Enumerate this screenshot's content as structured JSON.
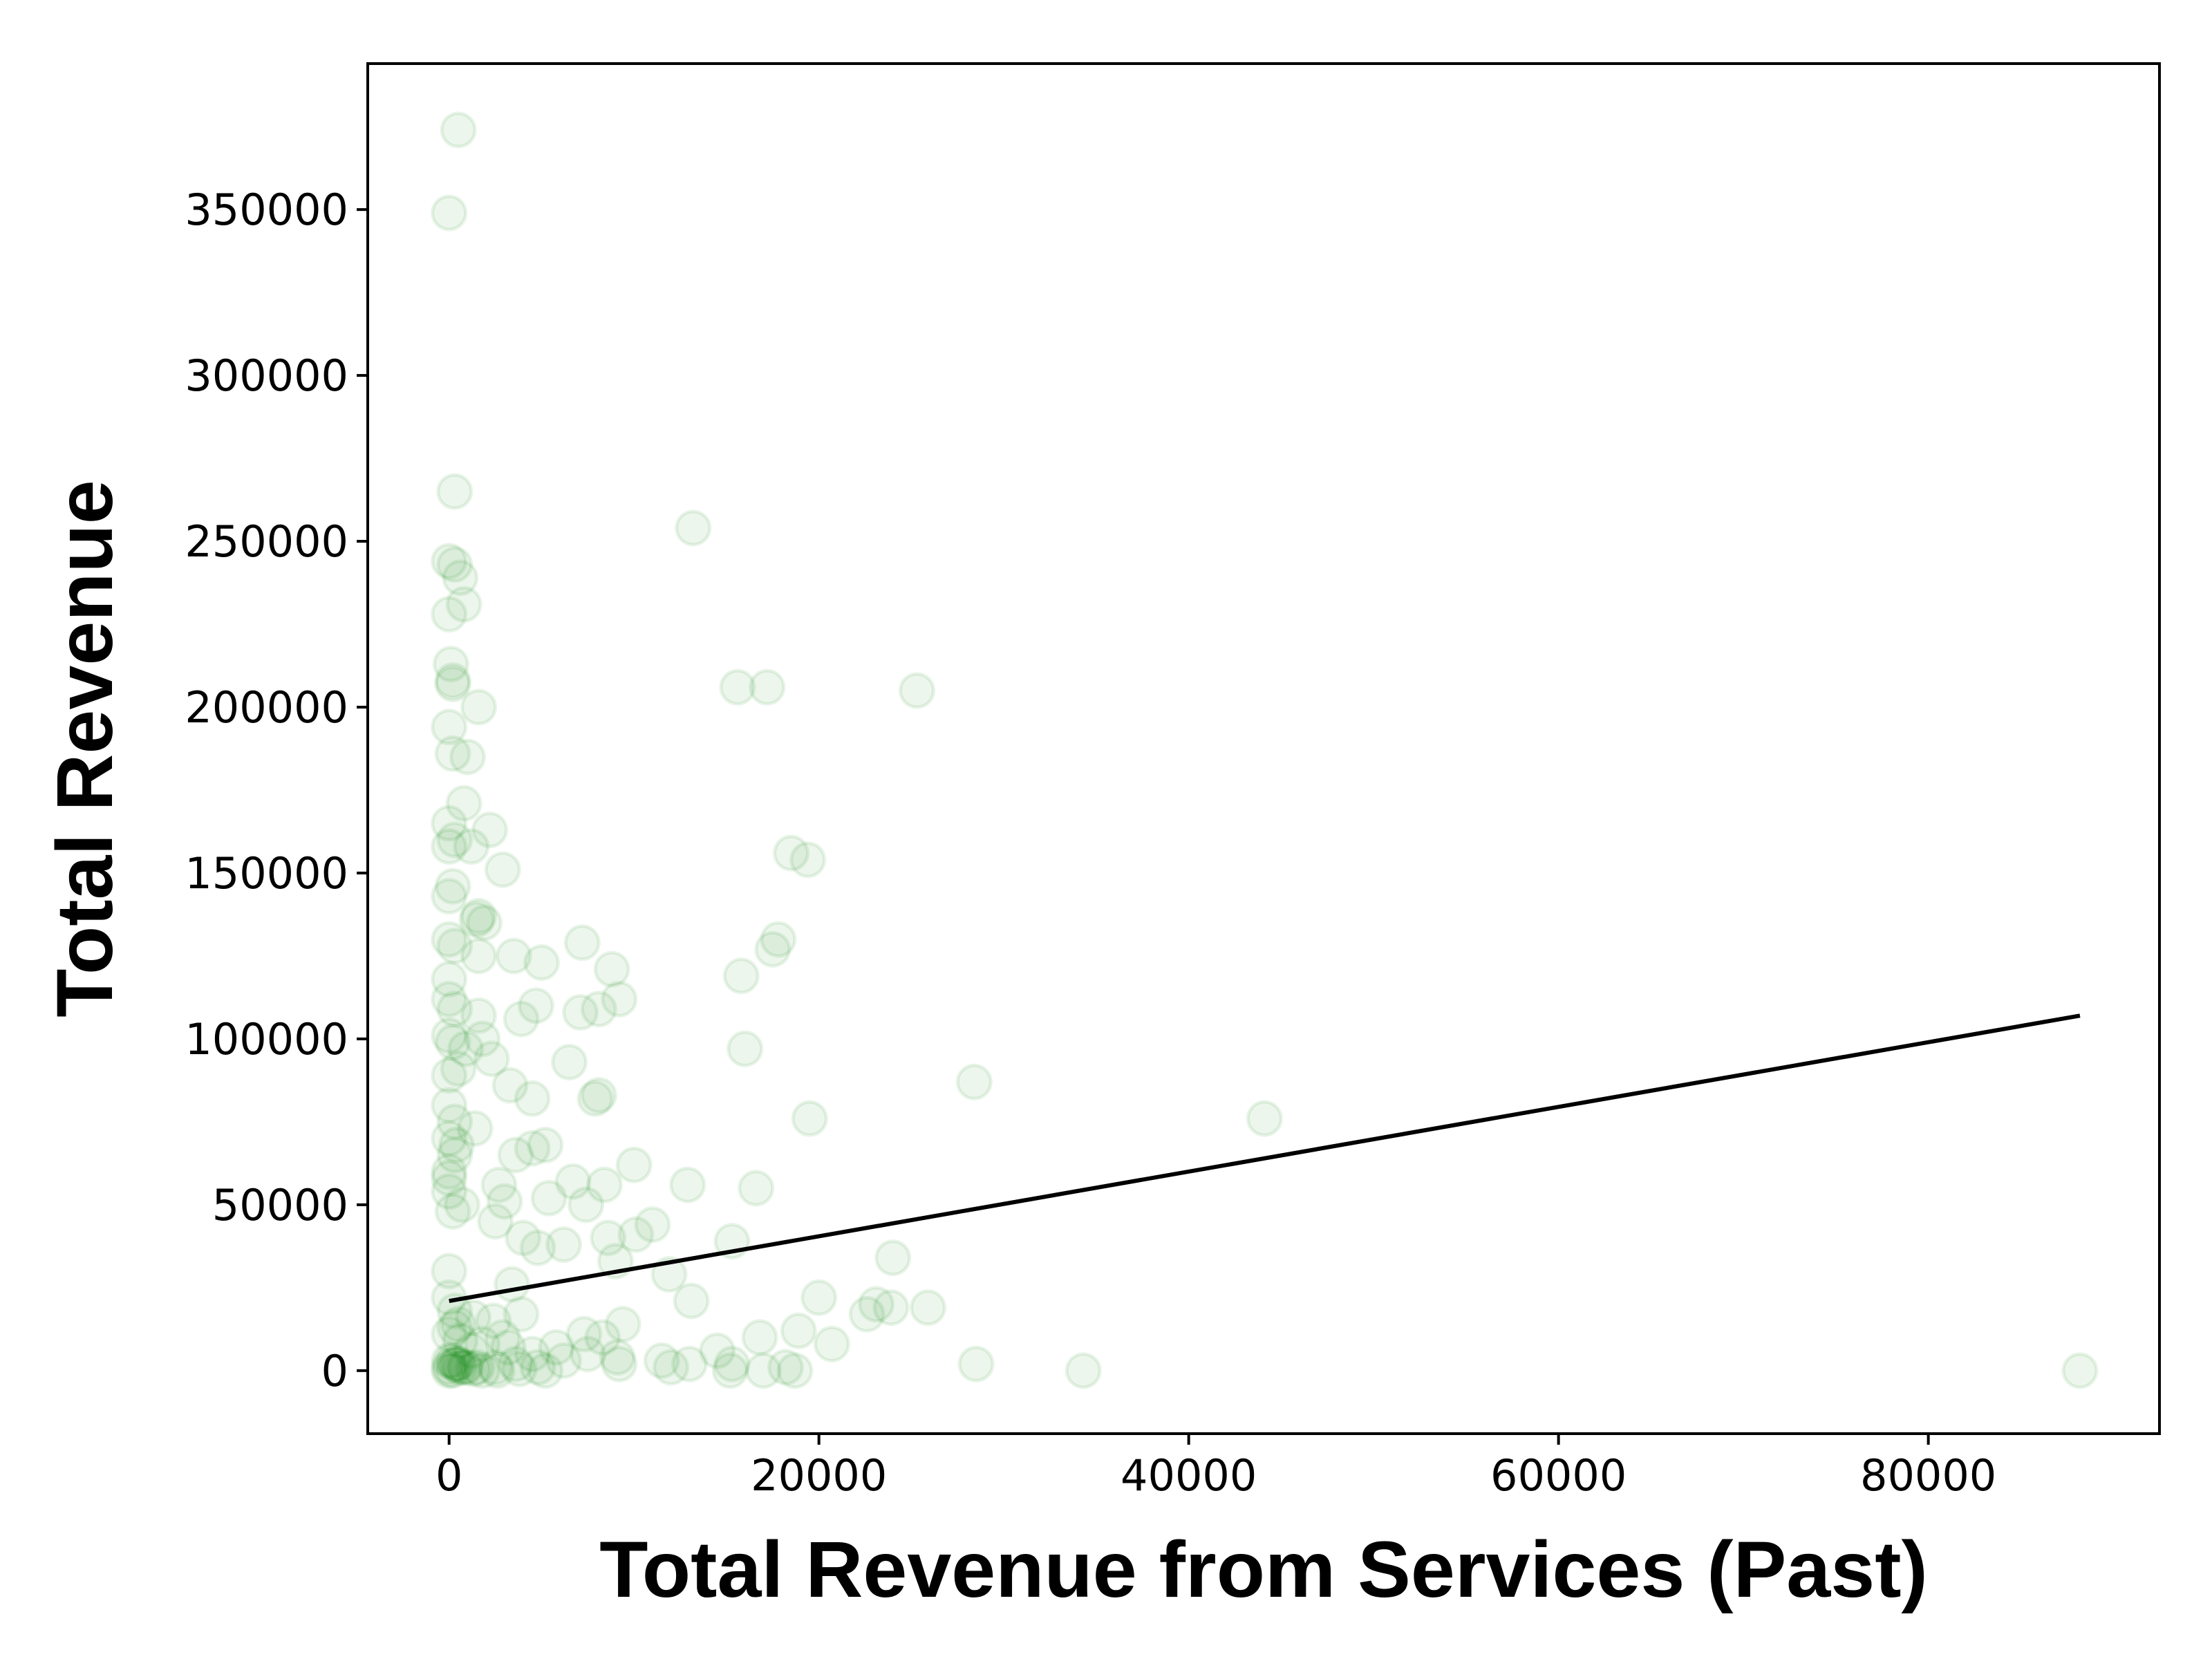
{
  "chart_data": {
    "type": "scatter",
    "title": "",
    "xlabel": "Total Revenue from Services (Past)",
    "ylabel": "Total Revenue",
    "xlim": [
      -4400,
      92500
    ],
    "ylim": [
      -19000,
      394000
    ],
    "xticks": [
      0,
      20000,
      40000,
      60000,
      80000
    ],
    "yticks": [
      0,
      50000,
      100000,
      150000,
      200000,
      250000,
      300000,
      350000
    ],
    "grid": false,
    "legend": "none",
    "colors": {
      "points": "#008000",
      "fit_line": "#000000",
      "axes": "#000000"
    },
    "series": [
      {
        "type": "scatter",
        "x": [
          500,
          0,
          300,
          13200,
          0,
          300,
          600,
          800,
          0,
          100,
          1600,
          200,
          200,
          15600,
          17200,
          25300,
          0,
          200,
          1000,
          800,
          0,
          0,
          300,
          1200,
          1500,
          2200,
          2900,
          0,
          200,
          1600,
          1900,
          18500,
          19400,
          0,
          300,
          1600,
          17800,
          3500,
          5000,
          7200,
          7100,
          8800,
          0,
          15800,
          17500,
          0,
          300,
          1600,
          4700,
          9200,
          0,
          8100,
          3900,
          200,
          900,
          1800,
          16000,
          28400,
          0,
          500,
          2300,
          6500,
          3300,
          4500,
          7900,
          8100,
          19500,
          44100,
          0,
          300,
          1400,
          5200,
          400,
          0,
          300,
          4500,
          0,
          10000,
          0,
          3600,
          6700,
          8400,
          2700,
          12900,
          16600,
          5400,
          3000,
          7400,
          0,
          200,
          700,
          11000,
          2500,
          8600,
          10100,
          4800,
          15300,
          6200,
          24000,
          4000,
          9000,
          0,
          3400,
          11900,
          20000,
          13100,
          23900,
          25900,
          23100,
          22600,
          0,
          300,
          1300,
          2400,
          500,
          3900,
          7300,
          8300,
          9400,
          18900,
          20700,
          16800,
          14500,
          0,
          300,
          600,
          1800,
          3200,
          4500,
          1200,
          2900,
          5800,
          7500,
          9100,
          11500,
          13000,
          15300,
          18200,
          500,
          0,
          300,
          800,
          1500,
          2500,
          3600,
          4800,
          6200,
          9200,
          12000,
          15200,
          17000,
          18700,
          28500,
          34300,
          88200,
          0,
          200,
          400,
          600,
          900,
          1300,
          1800,
          2600,
          3800,
          5200,
          0,
          200
        ],
        "y": [
          374000,
          349000,
          265000,
          254000,
          244000,
          243000,
          239000,
          231000,
          228000,
          213000,
          200000,
          207000,
          208000,
          206000,
          206000,
          205000,
          194000,
          186000,
          185000,
          171000,
          165000,
          158000,
          160000,
          158000,
          136000,
          163000,
          151000,
          143000,
          146000,
          137000,
          135000,
          156000,
          154000,
          130000,
          128000,
          125000,
          130000,
          125000,
          123000,
          129000,
          108000,
          121000,
          118000,
          119000,
          127000,
          112000,
          109000,
          107000,
          110000,
          112000,
          101000,
          109000,
          106000,
          99000,
          97000,
          100000,
          97000,
          87000,
          89000,
          91000,
          94000,
          93000,
          86000,
          82000,
          82000,
          83000,
          76000,
          76000,
          80000,
          75000,
          73000,
          68000,
          68000,
          70000,
          65000,
          67000,
          58000,
          62000,
          60000,
          65000,
          57000,
          56000,
          56000,
          56000,
          55000,
          52000,
          51000,
          50000,
          54000,
          48000,
          50000,
          44000,
          45000,
          40000,
          41000,
          37000,
          39000,
          38000,
          34000,
          40000,
          33000,
          30000,
          26000,
          29000,
          22000,
          21000,
          19000,
          19000,
          20000,
          17000,
          22000,
          18000,
          16000,
          15000,
          14000,
          17000,
          11000,
          10000,
          14000,
          12000,
          8000,
          10000,
          6000,
          11000,
          13000,
          9000,
          8000,
          7000,
          5000,
          6000,
          10000,
          7000,
          5000,
          4000,
          3000,
          2000,
          2000,
          1000,
          2000,
          3000,
          2000,
          1000,
          1000,
          1000,
          2000,
          1000,
          3000,
          2000,
          1000,
          0,
          0,
          0,
          2000,
          0,
          0,
          1000,
          3000,
          2000,
          1000,
          1000,
          500,
          0,
          0,
          500,
          0,
          0,
          0
        ]
      },
      {
        "type": "line",
        "name": "",
        "x": [
          0,
          88200
        ],
        "y": [
          21000,
          107000
        ]
      }
    ]
  }
}
